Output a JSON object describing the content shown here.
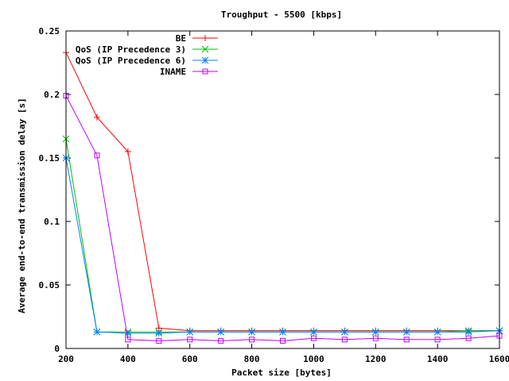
{
  "chart_data": {
    "type": "line",
    "title": "Troughput - 5500 [kbps]",
    "xlabel": "Packet size [bytes]",
    "ylabel": "Average end-to-end transmission delay [s]",
    "xlim": [
      200,
      1600
    ],
    "ylim": [
      0,
      0.25
    ],
    "xticks": [
      200,
      400,
      600,
      800,
      1000,
      1200,
      1400,
      1600
    ],
    "xtick_labels": [
      "200",
      "400",
      "600",
      "800",
      "1000",
      "1200",
      "1400",
      "1600"
    ],
    "yticks": [
      0,
      0.05,
      0.1,
      0.15,
      0.2,
      0.25
    ],
    "ytick_labels": [
      "0",
      "0.05",
      "0.1",
      "0.15",
      "0.2",
      "0.25"
    ],
    "grid": false,
    "legend_position": "top-right",
    "x": [
      200,
      300,
      400,
      500,
      600,
      700,
      800,
      900,
      1000,
      1100,
      1200,
      1300,
      1400,
      1500,
      1600
    ],
    "series": [
      {
        "name": "BE",
        "marker": "plus",
        "color": "#ff0000",
        "values": [
          0.233,
          0.182,
          0.155,
          0.016,
          0.014,
          0.014,
          0.014,
          0.014,
          0.014,
          0.014,
          0.014,
          0.014,
          0.014,
          0.014,
          0.014
        ]
      },
      {
        "name": "QoS (IP Precedence 3)",
        "marker": "cross",
        "color": "#00c000",
        "values": [
          0.165,
          0.013,
          0.013,
          0.013,
          0.013,
          0.013,
          0.013,
          0.013,
          0.013,
          0.013,
          0.013,
          0.013,
          0.013,
          0.014,
          0.014
        ]
      },
      {
        "name": "QoS (IP Precedence 6)",
        "marker": "star",
        "color": "#0080ff",
        "values": [
          0.15,
          0.013,
          0.012,
          0.012,
          0.013,
          0.013,
          0.013,
          0.013,
          0.013,
          0.013,
          0.013,
          0.013,
          0.013,
          0.013,
          0.014
        ]
      },
      {
        "name": "INAME",
        "marker": "square",
        "color": "#c000ff",
        "values": [
          0.199,
          0.152,
          0.007,
          0.006,
          0.007,
          0.006,
          0.007,
          0.006,
          0.008,
          0.007,
          0.008,
          0.007,
          0.007,
          0.008,
          0.01
        ]
      }
    ]
  }
}
